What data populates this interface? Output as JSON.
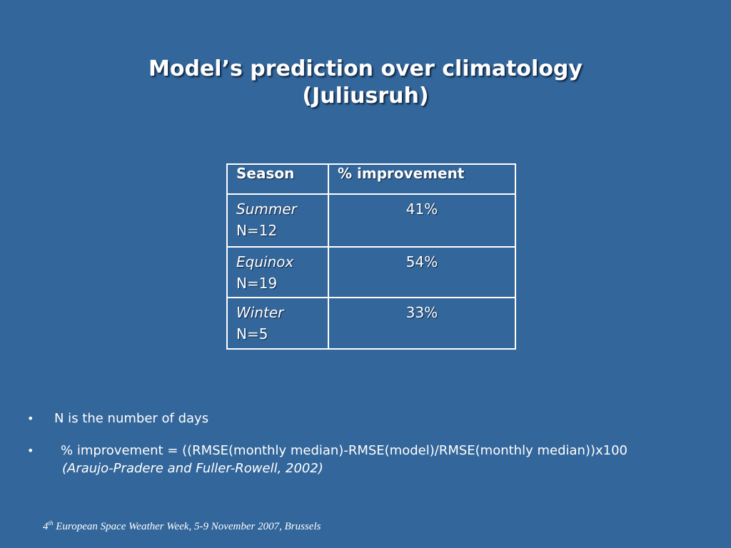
{
  "slide": {
    "title_line1": "Model’s prediction over climatology",
    "title_line2": "(Juliusruh)"
  },
  "table": {
    "headers": [
      "Season",
      "% improvement"
    ],
    "rows": [
      {
        "season": "Summer",
        "n": "N=12",
        "improvement": "41%"
      },
      {
        "season": "Equinox",
        "n": "N=19",
        "improvement": "54%"
      },
      {
        "season": "Winter",
        "n": "N=5",
        "improvement": "33%"
      }
    ]
  },
  "bullets": [
    {
      "text": "N is the number of days"
    },
    {
      "text": "% improvement = ((RMSE(monthly median)-RMSE(model)/RMSE(monthly median))x100",
      "citation": "(Araujo-Pradere and Fuller-Rowell, 2002)"
    }
  ],
  "footer": {
    "number": "4",
    "superscript": "th",
    "text": " European Space Weather Week, 5-9 November 2007, Brussels"
  },
  "colors": {
    "background": "#33669a",
    "text": "#ffffff"
  }
}
